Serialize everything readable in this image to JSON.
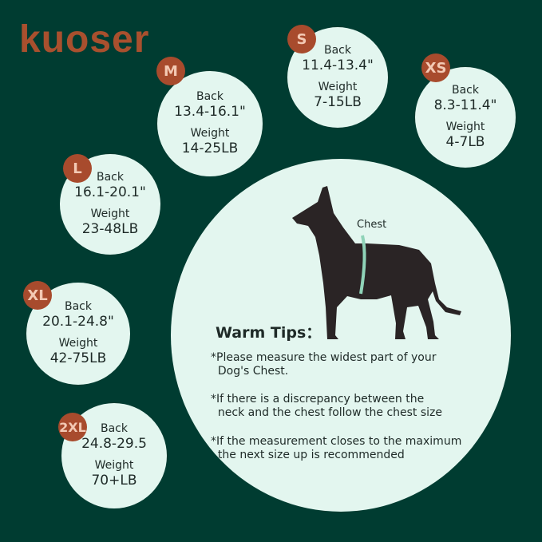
{
  "brand": {
    "logo": "kuoser",
    "accent": "#a84b2d",
    "background": "#003c31",
    "circle_fill": "#e3f6ef"
  },
  "sizes": [
    {
      "size": "M",
      "back_label": "Back",
      "back": "13.4-16.1\"",
      "weight_label": "Weight",
      "weight": "14-25LB"
    },
    {
      "size": "S",
      "back_label": "Back",
      "back": "11.4-13.4\"",
      "weight_label": "Weight",
      "weight": "7-15LB"
    },
    {
      "size": "XS",
      "back_label": "Back",
      "back": "8.3-11.4\"",
      "weight_label": "Weight",
      "weight": "4-7LB"
    },
    {
      "size": "L",
      "back_label": "Back",
      "back": "16.1-20.1\"",
      "weight_label": "Weight",
      "weight": "23-48LB"
    },
    {
      "size": "XL",
      "back_label": "Back",
      "back": "20.1-24.8\"",
      "weight_label": "Weight",
      "weight": "42-75LB"
    },
    {
      "size": "2XL",
      "back_label": "Back",
      "back": "24.8-29.5",
      "weight_label": "Weight",
      "weight": "70+LB"
    }
  ],
  "diagram": {
    "chest_label": "Chest"
  },
  "tips": {
    "title": "Warm Tips：",
    "items": [
      "*Please measure the widest part of your\n  Dog's Chest.",
      "*If there is a discrepancy between the\n  neck and the chest follow the chest size",
      "*If the measurement closes to the maximum\n  the next size up is recommended"
    ]
  }
}
